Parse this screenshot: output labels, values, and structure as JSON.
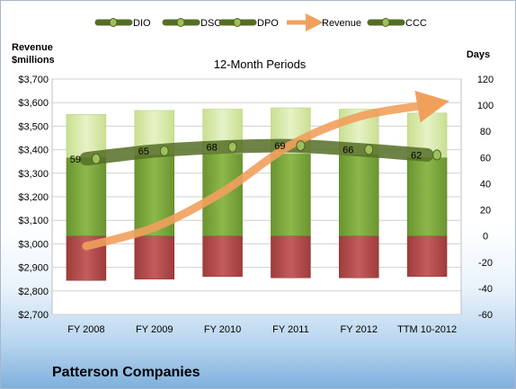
{
  "chart_data": {
    "type": "bar",
    "title": "12-Month Periods",
    "company": "Patterson Companies",
    "categories": [
      "FY 2008",
      "FY 2009",
      "FY 2010",
      "FY 2011",
      "FY 2012",
      "TTM 10-2012"
    ],
    "left_axis": {
      "label_line1": "Revenue",
      "label_line2": "$millions",
      "ylim": [
        2700,
        3700
      ],
      "ticks": [
        "$2,700",
        "$2,800",
        "$2,900",
        "$3,000",
        "$3,100",
        "$3,200",
        "$3,300",
        "$3,400",
        "$3,500",
        "$3,600",
        "$3,700"
      ]
    },
    "right_axis": {
      "label": "Days",
      "ylim": [
        -60,
        120
      ],
      "ticks": [
        "-60",
        "-40",
        "-20",
        "0",
        "20",
        "40",
        "60",
        "80",
        "100",
        "120"
      ]
    },
    "grid": true,
    "legend_position": "top",
    "series": [
      {
        "name": "DIO",
        "axis": "right",
        "kind": "stacked-bar",
        "color": "#7aa33a",
        "values": [
          60,
          62,
          63,
          63,
          62,
          60
        ]
      },
      {
        "name": "DSO",
        "axis": "right",
        "kind": "stacked-bar",
        "color": "#d7e9a8",
        "values": [
          33,
          34,
          34,
          35,
          35,
          34
        ]
      },
      {
        "name": "DPO",
        "axis": "right",
        "kind": "stacked-bar-negative",
        "color": "#b34b4b",
        "values": [
          -34,
          -33,
          -31,
          -32,
          -32,
          -31
        ]
      },
      {
        "name": "Revenue",
        "axis": "left",
        "kind": "arrow-line",
        "color": "#f1a05c",
        "values": [
          2990,
          3070,
          3220,
          3420,
          3540,
          3590
        ]
      },
      {
        "name": "CCC",
        "axis": "right",
        "kind": "line-markers",
        "color": "#5f7a2c",
        "values": [
          59,
          65,
          68,
          69,
          66,
          62
        ],
        "labels": [
          "59",
          "65",
          "68",
          "69",
          "66",
          "62"
        ]
      }
    ]
  }
}
